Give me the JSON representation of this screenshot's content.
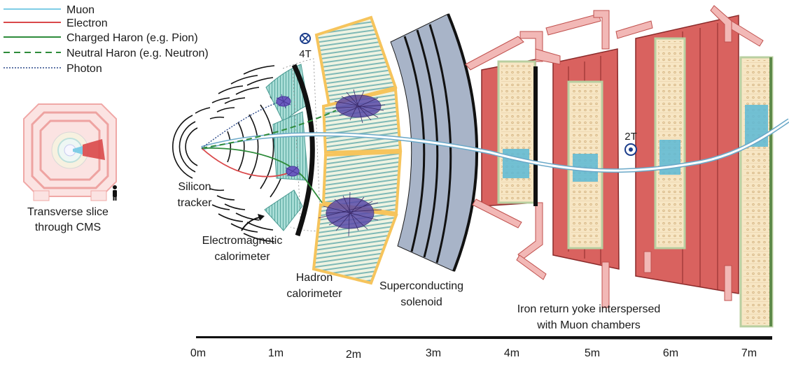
{
  "legend": {
    "items": [
      {
        "label": "Muon",
        "color": "#7fcde6",
        "style": "solid"
      },
      {
        "label": "Electron",
        "color": "#d9484a",
        "style": "solid"
      },
      {
        "label": "Charged Haron (e.g. Pion)",
        "color": "#2e8b3a",
        "style": "solid"
      },
      {
        "label": "Neutral Haron (e.g. Neutron)",
        "color": "#2e8b3a",
        "style": "dashed"
      },
      {
        "label": "Photon",
        "color": "#2d4a8a",
        "style": "dotted"
      }
    ]
  },
  "inset": {
    "caption_line1": "Transverse slice",
    "caption_line2": "through CMS"
  },
  "labels": {
    "tracker_line1": "Silicon",
    "tracker_line2": "tracker",
    "ecal_line1": "Electromagnetic",
    "ecal_line2": "calorimeter",
    "hcal_line1": "Hadron",
    "hcal_line2": "calorimeter",
    "solenoid_line1": "Superconducting",
    "solenoid_line2": "solenoid",
    "yoke_line1": "Iron return yoke interspersed",
    "yoke_line2": "with Muon chambers",
    "field_inner": "4T",
    "field_outer": "2T"
  },
  "scale": {
    "ticks": [
      "0m",
      "1m",
      "2m",
      "3m",
      "4m",
      "5m",
      "6m",
      "7m"
    ]
  },
  "colors": {
    "yoke": "#d9625f",
    "yoke_edge": "#8a2a2a",
    "yoke_light": "#f2b8b6",
    "solenoid": "#a8b4c8",
    "hcal_frame": "#f6c45c",
    "hcal_fill": "#e8f0d8",
    "ecal": "#8fd0c8",
    "chamber": "#f7e6c4",
    "chamber_cell": "#5bb8d6"
  }
}
